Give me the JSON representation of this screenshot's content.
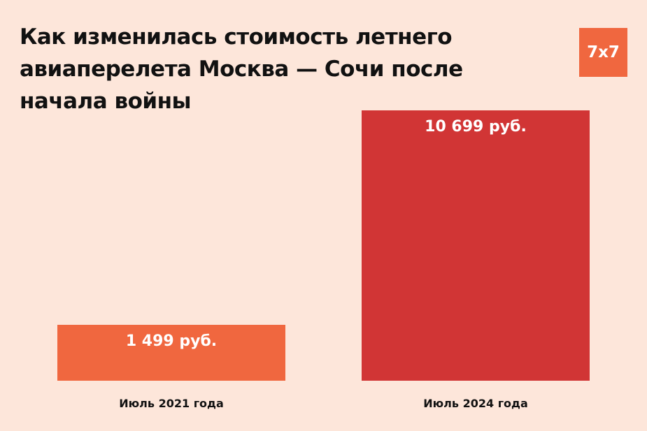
{
  "chart_data": {
    "type": "bar",
    "title": "Как изменилась стоимость летнего авиаперелета Москва — Сочи после начала войны",
    "categories": [
      "Июль 2021 года",
      "Июль 2024 года"
    ],
    "values": [
      1499,
      10699
    ],
    "data_labels": [
      "1 499 руб.",
      "10 699 руб."
    ],
    "colors": [
      "#F0673F",
      "#D13535"
    ],
    "xlabel": "",
    "ylabel": "",
    "grid": false
  },
  "logo": {
    "text": "7x7",
    "color": "#F0673F"
  },
  "background": "#FDE6DA"
}
